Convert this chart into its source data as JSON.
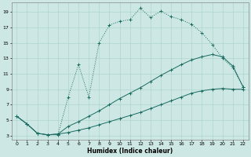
{
  "xlabel": "Humidex (Indice chaleur)",
  "bg_color": "#cde8e4",
  "grid_color": "#aed4ce",
  "line_color": "#1a6b60",
  "xlim": [
    -0.5,
    22.5
  ],
  "ylim": [
    2.5,
    20.2
  ],
  "xticks": [
    0,
    1,
    2,
    3,
    4,
    5,
    6,
    7,
    8,
    9,
    10,
    11,
    12,
    13,
    14,
    15,
    16,
    17,
    18,
    19,
    20,
    21,
    22
  ],
  "yticks": [
    3,
    5,
    7,
    9,
    11,
    13,
    15,
    17,
    19
  ],
  "line1_x": [
    0,
    1,
    2,
    3,
    4,
    5,
    6,
    7,
    8,
    9,
    10,
    11,
    12,
    13,
    14,
    15,
    16,
    17,
    18,
    19,
    20,
    21,
    22
  ],
  "line1_y": [
    5.5,
    4.5,
    3.3,
    3.1,
    3.1,
    8.0,
    12.2,
    8.0,
    15.0,
    17.3,
    17.8,
    18.0,
    19.5,
    18.3,
    19.1,
    18.4,
    18.0,
    17.4,
    16.3,
    14.8,
    13.0,
    11.8,
    9.3
  ],
  "line2_x": [
    0,
    1,
    2,
    3,
    4,
    5,
    6,
    7,
    8,
    9,
    10,
    11,
    12,
    13,
    14,
    15,
    16,
    17,
    18,
    19,
    20,
    21,
    22
  ],
  "line2_y": [
    5.5,
    4.5,
    3.3,
    3.1,
    3.2,
    4.2,
    4.8,
    5.5,
    6.2,
    7.0,
    7.8,
    8.5,
    9.2,
    10.0,
    10.8,
    11.5,
    12.2,
    12.8,
    13.2,
    13.5,
    13.2,
    12.0,
    9.3
  ],
  "line3_x": [
    0,
    1,
    2,
    3,
    4,
    5,
    6,
    7,
    8,
    9,
    10,
    11,
    12,
    13,
    14,
    15,
    16,
    17,
    18,
    19,
    20,
    21,
    22
  ],
  "line3_y": [
    5.5,
    4.5,
    3.3,
    3.1,
    3.2,
    3.4,
    3.7,
    4.0,
    4.4,
    4.8,
    5.2,
    5.6,
    6.0,
    6.5,
    7.0,
    7.5,
    8.0,
    8.5,
    8.8,
    9.0,
    9.1,
    9.0,
    9.0
  ]
}
